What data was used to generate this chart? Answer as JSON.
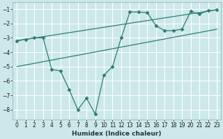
{
  "xlabel": "Humidex (Indice chaleur)",
  "ylabel": "",
  "bg_color": "#cce8ea",
  "grid_color": "#ffffff",
  "line_color": "#2d7d72",
  "xlim": [
    -0.5,
    23.5
  ],
  "ylim": [
    -8.7,
    -0.5
  ],
  "yticks": [
    -8,
    -7,
    -6,
    -5,
    -4,
    -3,
    -2,
    -1
  ],
  "xticks": [
    0,
    1,
    2,
    3,
    4,
    5,
    6,
    7,
    8,
    9,
    10,
    11,
    12,
    13,
    14,
    15,
    16,
    17,
    18,
    19,
    20,
    21,
    22,
    23
  ],
  "series1_x": [
    0,
    1,
    2,
    3,
    4,
    5,
    6,
    7,
    8,
    9,
    10,
    11,
    12,
    13,
    14,
    15,
    16,
    17,
    18,
    19,
    20,
    21,
    22,
    23
  ],
  "series1_y": [
    -3.2,
    -3.1,
    -3.0,
    -3.0,
    -5.2,
    -5.3,
    -6.6,
    -8.0,
    -7.2,
    -8.3,
    -5.6,
    -5.0,
    -3.0,
    -1.2,
    -1.2,
    -1.25,
    -2.15,
    -2.5,
    -2.5,
    -2.4,
    -1.15,
    -1.35,
    -1.1,
    -1.05
  ],
  "series2_x": [
    0,
    19
  ],
  "series2_y": [
    -3.2,
    -2.5
  ],
  "series3_x": [
    0,
    19
  ],
  "series3_y": [
    -5.0,
    -2.5
  ],
  "line2_x": [
    13,
    23
  ],
  "line2_y": [
    -1.2,
    -1.05
  ],
  "line3_x": [
    13,
    23
  ],
  "line3_y": [
    -3.0,
    -1.05
  ]
}
